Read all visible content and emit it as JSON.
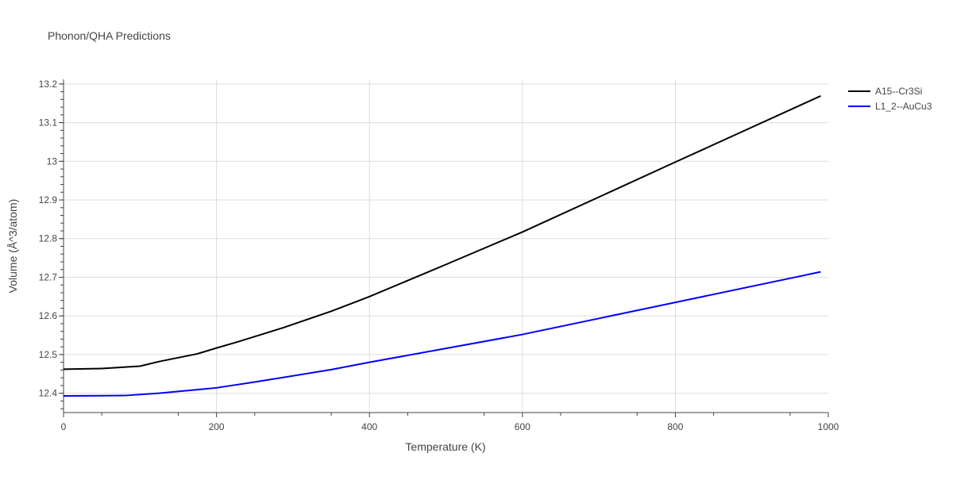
{
  "chart_data": {
    "type": "line",
    "title": "Phonon/QHA Predictions",
    "xlabel": "Temperature (K)",
    "ylabel": "Volume (Å^3/atom)",
    "xlim": [
      0,
      1000
    ],
    "ylim": [
      12.35,
      13.212
    ],
    "xticks": [
      0,
      200,
      400,
      600,
      800,
      1000
    ],
    "yticks": [
      12.4,
      12.5,
      12.6,
      12.7,
      12.8,
      12.9,
      13,
      13.1,
      13.2
    ],
    "ytick_labels": [
      "12.4",
      "12.5",
      "12.6",
      "12.7",
      "12.8",
      "12.9",
      "13",
      "13.1",
      "13.2"
    ],
    "grid": true,
    "legend_position": "top-right",
    "series": [
      {
        "name": "A15--Cr3Si",
        "color": "#000000",
        "x": [
          0,
          50,
          100,
          125,
          175,
          200,
          228,
          288,
          350,
          400,
          500,
          600,
          800,
          990
        ],
        "y": [
          12.462,
          12.464,
          12.47,
          12.482,
          12.502,
          12.517,
          12.533,
          12.57,
          12.612,
          12.65,
          12.733,
          12.817,
          12.998,
          13.169
        ]
      },
      {
        "name": "L1_2--AuCu3",
        "color": "#0000ff",
        "x": [
          0,
          80,
          125,
          200,
          250,
          350,
          400,
          500,
          600,
          800,
          990
        ],
        "y": [
          12.393,
          12.394,
          12.4,
          12.414,
          12.429,
          12.461,
          12.48,
          12.516,
          12.552,
          12.635,
          12.714
        ]
      }
    ]
  }
}
